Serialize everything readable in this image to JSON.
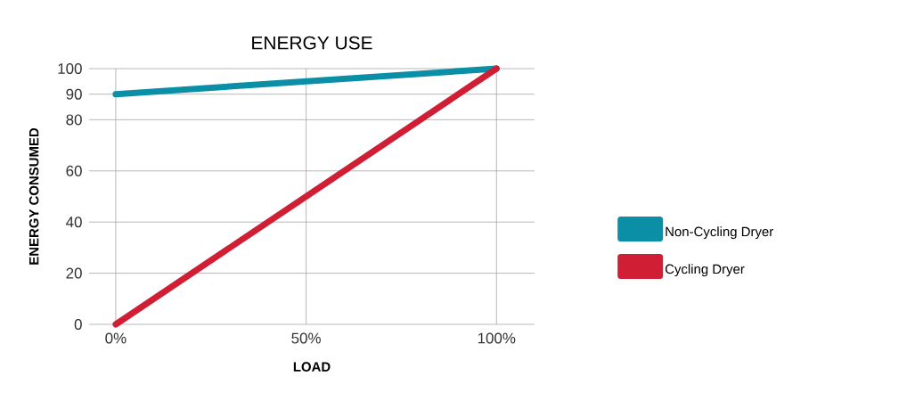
{
  "chart_data": {
    "type": "line",
    "title": "ENERGY USE",
    "xlabel": "LOAD",
    "ylabel": "ENERGY CONSUMED",
    "x": [
      0,
      100
    ],
    "series": [
      {
        "name": "Non-Cycling Dryer",
        "color": "#0a8fa6",
        "values": [
          90,
          100
        ]
      },
      {
        "name": "Cycling Dryer",
        "color": "#d01f35",
        "values": [
          0,
          100
        ]
      }
    ],
    "xlim": [
      -7,
      110
    ],
    "ylim": [
      0,
      100
    ],
    "xticks": [
      {
        "value": 0,
        "label": "0%"
      },
      {
        "value": 50,
        "label": "50%"
      },
      {
        "value": 100,
        "label": "100%"
      }
    ],
    "yticks": [
      0,
      20,
      40,
      60,
      80,
      90,
      100
    ],
    "grid": true,
    "legend": "right",
    "line_style": "solid"
  }
}
